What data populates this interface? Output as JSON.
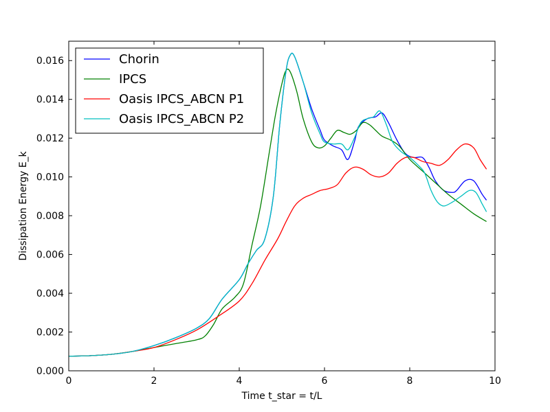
{
  "chart_data": {
    "type": "line",
    "xlabel": "Time t_star = t/L",
    "ylabel": "Dissipation Energy E_k",
    "xlim": [
      0,
      10
    ],
    "ylim": [
      0,
      0.017
    ],
    "xticks": [
      0,
      2,
      4,
      6,
      8,
      10
    ],
    "yticks": [
      0.0,
      0.002,
      0.004,
      0.006,
      0.008,
      0.01,
      0.012,
      0.014,
      0.016
    ],
    "ytick_labels": [
      "0.000",
      "0.002",
      "0.004",
      "0.006",
      "0.008",
      "0.010",
      "0.012",
      "0.014",
      "0.016"
    ],
    "xtick_labels": [
      "0",
      "2",
      "4",
      "6",
      "8",
      "10"
    ],
    "grid": false,
    "legend_position": "top-left",
    "series": [
      {
        "name": "Chorin",
        "color": "#0000ff",
        "points": [
          [
            0,
            0.00075
          ],
          [
            0.5,
            0.00078
          ],
          [
            1.0,
            0.00085
          ],
          [
            1.5,
            0.001
          ],
          [
            2.0,
            0.0013
          ],
          [
            2.5,
            0.0017
          ],
          [
            3.0,
            0.0022
          ],
          [
            3.3,
            0.0027
          ],
          [
            3.6,
            0.0037
          ],
          [
            4.0,
            0.0047
          ],
          [
            4.2,
            0.0055
          ],
          [
            4.4,
            0.0062
          ],
          [
            4.6,
            0.0068
          ],
          [
            4.8,
            0.009
          ],
          [
            4.95,
            0.0127
          ],
          [
            5.1,
            0.0155
          ],
          [
            5.2,
            0.0163
          ],
          [
            5.3,
            0.0162
          ],
          [
            5.5,
            0.0149
          ],
          [
            5.7,
            0.0135
          ],
          [
            5.9,
            0.0124
          ],
          [
            6.0,
            0.0119
          ],
          [
            6.2,
            0.0116
          ],
          [
            6.4,
            0.0114
          ],
          [
            6.55,
            0.0109
          ],
          [
            6.7,
            0.0118
          ],
          [
            6.8,
            0.0126
          ],
          [
            7.0,
            0.013
          ],
          [
            7.2,
            0.0131
          ],
          [
            7.35,
            0.0133
          ],
          [
            7.5,
            0.0128
          ],
          [
            7.7,
            0.0119
          ],
          [
            7.9,
            0.0112
          ],
          [
            8.1,
            0.011
          ],
          [
            8.3,
            0.011
          ],
          [
            8.45,
            0.0105
          ],
          [
            8.6,
            0.0098
          ],
          [
            8.8,
            0.0093
          ],
          [
            9.0,
            0.0092
          ],
          [
            9.1,
            0.0093
          ],
          [
            9.3,
            0.0098
          ],
          [
            9.5,
            0.0098
          ],
          [
            9.7,
            0.0091
          ],
          [
            9.8,
            0.0088
          ]
        ]
      },
      {
        "name": "IPCS",
        "color": "#008000",
        "points": [
          [
            0,
            0.00075
          ],
          [
            0.5,
            0.00078
          ],
          [
            1.0,
            0.00085
          ],
          [
            1.5,
            0.001
          ],
          [
            2.0,
            0.0012
          ],
          [
            2.5,
            0.0014
          ],
          [
            3.0,
            0.0016
          ],
          [
            3.2,
            0.0018
          ],
          [
            3.4,
            0.0024
          ],
          [
            3.6,
            0.0032
          ],
          [
            3.9,
            0.0038
          ],
          [
            4.1,
            0.0045
          ],
          [
            4.3,
            0.0065
          ],
          [
            4.5,
            0.0085
          ],
          [
            4.7,
            0.0112
          ],
          [
            4.85,
            0.0132
          ],
          [
            5.0,
            0.0148
          ],
          [
            5.1,
            0.0155
          ],
          [
            5.2,
            0.0154
          ],
          [
            5.35,
            0.0144
          ],
          [
            5.5,
            0.013
          ],
          [
            5.7,
            0.0118
          ],
          [
            5.85,
            0.0115
          ],
          [
            6.0,
            0.0116
          ],
          [
            6.15,
            0.012
          ],
          [
            6.3,
            0.0124
          ],
          [
            6.45,
            0.0123
          ],
          [
            6.6,
            0.0122
          ],
          [
            6.75,
            0.0124
          ],
          [
            6.9,
            0.0128
          ],
          [
            7.05,
            0.0127
          ],
          [
            7.2,
            0.0124
          ],
          [
            7.35,
            0.0121
          ],
          [
            7.55,
            0.0119
          ],
          [
            7.75,
            0.0116
          ],
          [
            8.0,
            0.0109
          ],
          [
            8.3,
            0.0103
          ],
          [
            8.6,
            0.0097
          ],
          [
            8.9,
            0.0091
          ],
          [
            9.2,
            0.0086
          ],
          [
            9.5,
            0.0081
          ],
          [
            9.8,
            0.0077
          ]
        ]
      },
      {
        "name": "Oasis IPCS_ABCN P1",
        "color": "#ff0000",
        "points": [
          [
            0,
            0.00075
          ],
          [
            0.5,
            0.00078
          ],
          [
            1.0,
            0.00085
          ],
          [
            1.5,
            0.001
          ],
          [
            2.0,
            0.0012
          ],
          [
            2.5,
            0.0016
          ],
          [
            3.0,
            0.0021
          ],
          [
            3.5,
            0.0028
          ],
          [
            4.0,
            0.0036
          ],
          [
            4.3,
            0.0045
          ],
          [
            4.6,
            0.0057
          ],
          [
            4.9,
            0.0068
          ],
          [
            5.1,
            0.0077
          ],
          [
            5.3,
            0.0085
          ],
          [
            5.5,
            0.0089
          ],
          [
            5.7,
            0.0091
          ],
          [
            5.9,
            0.0093
          ],
          [
            6.1,
            0.0094
          ],
          [
            6.3,
            0.0096
          ],
          [
            6.5,
            0.0102
          ],
          [
            6.7,
            0.0105
          ],
          [
            6.9,
            0.0104
          ],
          [
            7.1,
            0.0101
          ],
          [
            7.3,
            0.01
          ],
          [
            7.5,
            0.0102
          ],
          [
            7.7,
            0.0107
          ],
          [
            7.9,
            0.011
          ],
          [
            8.1,
            0.011
          ],
          [
            8.3,
            0.0108
          ],
          [
            8.5,
            0.0107
          ],
          [
            8.7,
            0.0106
          ],
          [
            8.9,
            0.0109
          ],
          [
            9.1,
            0.0114
          ],
          [
            9.3,
            0.0117
          ],
          [
            9.5,
            0.0115
          ],
          [
            9.65,
            0.0109
          ],
          [
            9.8,
            0.0104
          ]
        ]
      },
      {
        "name": "Oasis IPCS_ABCN P2",
        "color": "#00bfbf",
        "points": [
          [
            0,
            0.00075
          ],
          [
            0.5,
            0.00078
          ],
          [
            1.0,
            0.00085
          ],
          [
            1.5,
            0.001
          ],
          [
            2.0,
            0.0013
          ],
          [
            2.5,
            0.0017
          ],
          [
            3.0,
            0.0022
          ],
          [
            3.3,
            0.0027
          ],
          [
            3.6,
            0.0037
          ],
          [
            4.0,
            0.0047
          ],
          [
            4.2,
            0.0055
          ],
          [
            4.4,
            0.0062
          ],
          [
            4.6,
            0.0068
          ],
          [
            4.8,
            0.009
          ],
          [
            4.95,
            0.0127
          ],
          [
            5.1,
            0.0155
          ],
          [
            5.2,
            0.0163
          ],
          [
            5.3,
            0.0162
          ],
          [
            5.5,
            0.0149
          ],
          [
            5.7,
            0.0133
          ],
          [
            5.9,
            0.0122
          ],
          [
            6.0,
            0.0118
          ],
          [
            6.2,
            0.0117
          ],
          [
            6.4,
            0.0117
          ],
          [
            6.55,
            0.0114
          ],
          [
            6.7,
            0.012
          ],
          [
            6.85,
            0.0128
          ],
          [
            7.0,
            0.013
          ],
          [
            7.15,
            0.0131
          ],
          [
            7.3,
            0.0134
          ],
          [
            7.45,
            0.0127
          ],
          [
            7.6,
            0.0118
          ],
          [
            7.8,
            0.0113
          ],
          [
            8.0,
            0.011
          ],
          [
            8.2,
            0.0106
          ],
          [
            8.35,
            0.0102
          ],
          [
            8.5,
            0.0093
          ],
          [
            8.65,
            0.0087
          ],
          [
            8.8,
            0.0085
          ],
          [
            9.0,
            0.0087
          ],
          [
            9.2,
            0.009
          ],
          [
            9.4,
            0.0093
          ],
          [
            9.55,
            0.0092
          ],
          [
            9.7,
            0.0086
          ],
          [
            9.8,
            0.0082
          ]
        ]
      }
    ]
  }
}
